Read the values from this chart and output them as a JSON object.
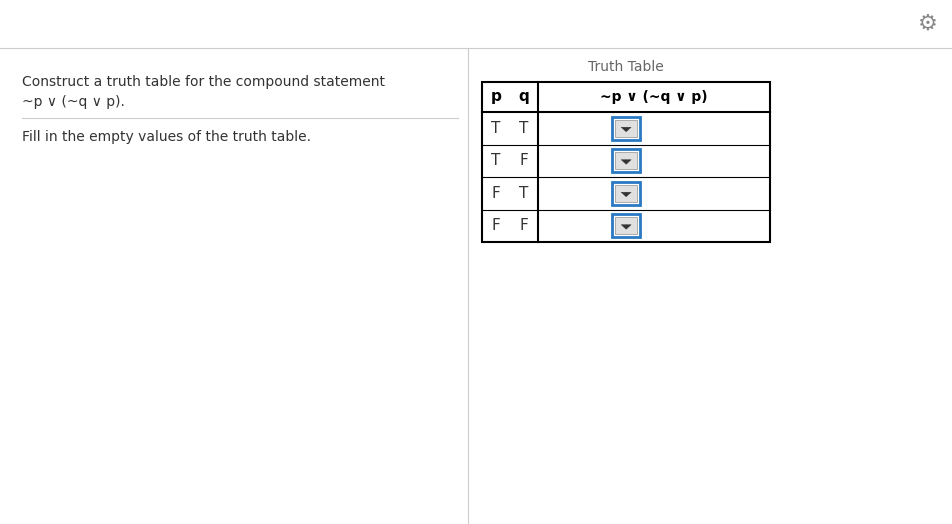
{
  "title": "Truth Table",
  "statement_line1": "Construct a truth table for the compound statement",
  "statement_line2": "~p ∨ (~q ∨ p).",
  "instruction": "Fill in the empty values of the truth table.",
  "rows": [
    [
      "T",
      "T"
    ],
    [
      "T",
      "F"
    ],
    [
      "F",
      "T"
    ],
    [
      "F",
      "F"
    ]
  ],
  "bg_color": "#ffffff",
  "dropdown_border_color": "#2979c4",
  "divider_color": "#cccccc",
  "gear_color": "#888888",
  "text_color": "#333333",
  "title_color": "#666666"
}
